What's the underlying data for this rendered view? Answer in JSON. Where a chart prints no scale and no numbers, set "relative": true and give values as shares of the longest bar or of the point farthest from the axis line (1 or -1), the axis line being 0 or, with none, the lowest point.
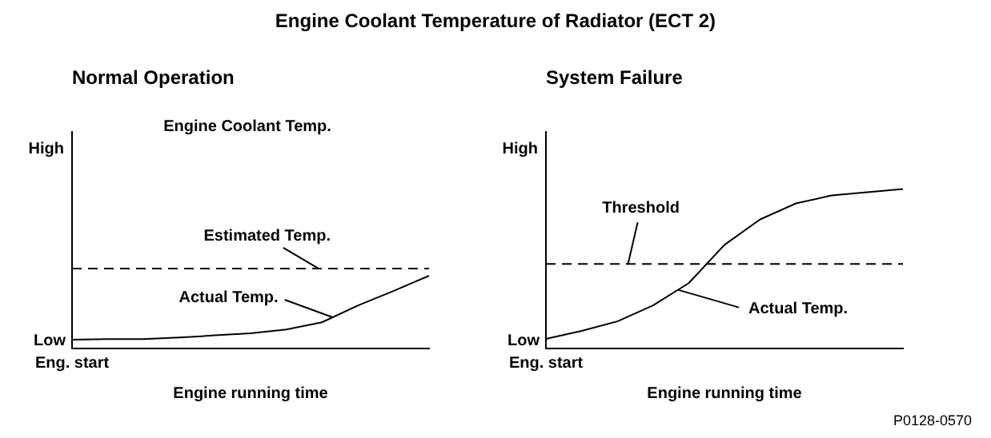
{
  "chart_data": [
    {
      "type": "line",
      "title": "Engine Coolant Temperature of Radiator (ECT 2)",
      "subtitle": "Normal Operation",
      "ylabel": "Engine Coolant Temp.",
      "xlabel": "Engine running time",
      "relative": true,
      "marker": "none",
      "line_style": "solid",
      "categories": [
        null,
        null,
        null,
        null,
        null,
        null,
        null,
        null,
        null,
        null,
        null
      ],
      "series": [
        {
          "name": "Actual Temp.",
          "color": "#000000",
          "values": [
            0.12,
            0.13,
            0.13,
            0.15,
            0.18,
            0.21,
            0.26,
            0.36,
            0.59,
            0.79,
            1
          ]
        }
      ],
      "ref_lines": [
        {
          "axis": "y",
          "value": 1.1,
          "line_style": "dashed",
          "color": "#000000"
        }
      ],
      "annotations": [
        "High",
        "Low",
        "Eng. start",
        {
          "text": "Estimated Temp.",
          "y": 1.1
        }
      ]
    },
    {
      "type": "line",
      "subtitle": "System Failure",
      "xlabel": "Engine running time",
      "relative": true,
      "marker": "none",
      "line_style": "solid",
      "categories": [
        null,
        null,
        null,
        null,
        null,
        null,
        null,
        null,
        null,
        null,
        null
      ],
      "series": [
        {
          "name": "Actual Temp.",
          "color": "#000000",
          "values": [
            0.06,
            0.11,
            0.17,
            0.27,
            0.41,
            0.65,
            0.81,
            0.91,
            0.96,
            0.98,
            1
          ]
        }
      ],
      "ref_lines": [
        {
          "axis": "y",
          "value": 0.53,
          "line_style": "dashed",
          "color": "#000000"
        }
      ],
      "annotations": [
        "High",
        "Low",
        "Eng. start",
        {
          "text": "Threshold",
          "y": 0.53
        },
        "P0128-0570"
      ]
    }
  ]
}
